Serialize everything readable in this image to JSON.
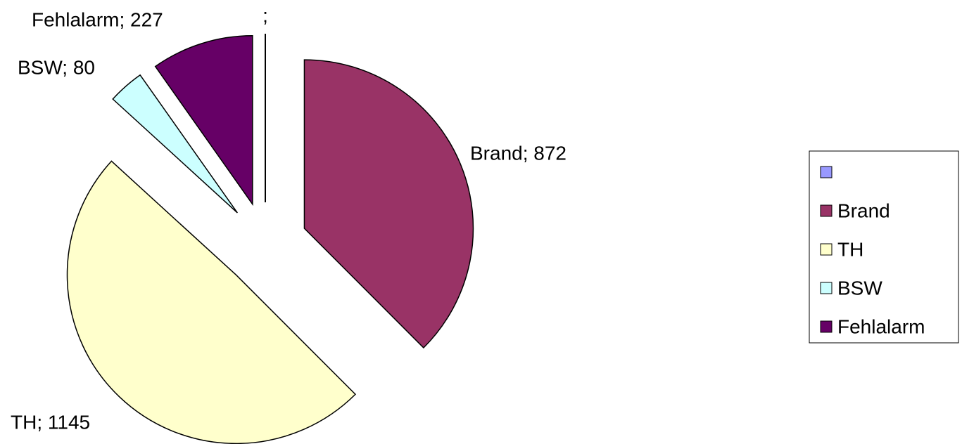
{
  "chart_data": {
    "type": "pie",
    "categories": [
      null,
      "Brand",
      "TH",
      "BSW",
      "Fehlalarm"
    ],
    "values": [
      null,
      872,
      1145,
      80,
      227
    ],
    "value_labels": [
      ";",
      "Brand; 872",
      "TH; 1145",
      "BSW; 80",
      "Fehlalarm; 227"
    ],
    "colors": [
      "#9999ff",
      "#993366",
      "#ffffcc",
      "#ccffff",
      "#660066"
    ],
    "legend": "right"
  }
}
